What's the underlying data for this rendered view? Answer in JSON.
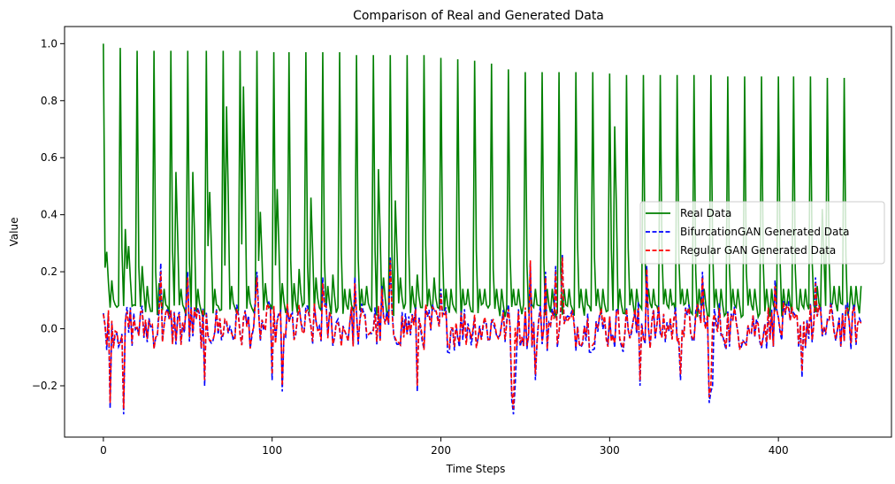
{
  "chart_data": {
    "type": "line",
    "title": "Comparison of Real and Generated Data",
    "xlabel": "Time Steps",
    "ylabel": "Value",
    "xlim": [
      -23,
      467
    ],
    "ylim": [
      -0.38,
      1.06
    ],
    "xticks": [
      0,
      100,
      200,
      300,
      400
    ],
    "yticks": [
      -0.2,
      0.0,
      0.2,
      0.4,
      0.6,
      0.8,
      1.0
    ],
    "ytick_labels": [
      "−0.2",
      "0.0",
      "0.2",
      "0.4",
      "0.6",
      "0.8",
      "1.0"
    ],
    "grid": false,
    "legend_position": "center-right",
    "series": [
      {
        "name": "Real Data",
        "color": "#008000",
        "style": "solid",
        "peak_positions": [
          0,
          10,
          20,
          30,
          40,
          50,
          61,
          71,
          81,
          91,
          101,
          110,
          120,
          130,
          140,
          150,
          160,
          170,
          180,
          190,
          200,
          210,
          220,
          230,
          240,
          250,
          260,
          270,
          280,
          290,
          300,
          310,
          320,
          330,
          340,
          350,
          360,
          370,
          380,
          390,
          400,
          409,
          419,
          429,
          439
        ],
        "peak_values": [
          1.0,
          0.985,
          0.975,
          0.975,
          0.975,
          0.975,
          0.975,
          0.975,
          0.975,
          0.975,
          0.97,
          0.97,
          0.97,
          0.97,
          0.97,
          0.96,
          0.96,
          0.96,
          0.96,
          0.96,
          0.95,
          0.945,
          0.94,
          0.93,
          0.91,
          0.9,
          0.9,
          0.9,
          0.9,
          0.9,
          0.895,
          0.89,
          0.89,
          0.89,
          0.89,
          0.89,
          0.89,
          0.885,
          0.885,
          0.885,
          0.885,
          0.885,
          0.885,
          0.88,
          0.88
        ],
        "secondary_positions": [
          2,
          5,
          13,
          15,
          23,
          26,
          33,
          36,
          43,
          46,
          53,
          56,
          63,
          66,
          73,
          76,
          83,
          86,
          93,
          96,
          103,
          106,
          113,
          116,
          123,
          126,
          133,
          136,
          143,
          146,
          153,
          156,
          163,
          166,
          173,
          176,
          183,
          186,
          193,
          196,
          203,
          206,
          213,
          216,
          223,
          226,
          233,
          236,
          243,
          246,
          253,
          256,
          263,
          266,
          273,
          276,
          283,
          286,
          293,
          296,
          303,
          306,
          313,
          316,
          323,
          326,
          333,
          336,
          343,
          346,
          353,
          356,
          363,
          366,
          373,
          376,
          383,
          386,
          393,
          396,
          403,
          406,
          413,
          416,
          423,
          426,
          433,
          436,
          443,
          446
        ],
        "secondary_values": [
          0.27,
          0.17,
          0.35,
          0.29,
          0.22,
          0.15,
          0.16,
          0.14,
          0.55,
          0.14,
          0.55,
          0.14,
          0.48,
          0.14,
          0.78,
          0.15,
          0.85,
          0.15,
          0.41,
          0.16,
          0.49,
          0.16,
          0.16,
          0.21,
          0.46,
          0.18,
          0.15,
          0.19,
          0.14,
          0.14,
          0.14,
          0.15,
          0.56,
          0.18,
          0.45,
          0.18,
          0.15,
          0.19,
          0.14,
          0.18,
          0.14,
          0.14,
          0.14,
          0.14,
          0.14,
          0.14,
          0.14,
          0.14,
          0.14,
          0.14,
          0.14,
          0.14,
          0.14,
          0.14,
          0.14,
          0.14,
          0.14,
          0.14,
          0.14,
          0.14,
          0.71,
          0.14,
          0.14,
          0.14,
          0.14,
          0.14,
          0.14,
          0.14,
          0.14,
          0.14,
          0.14,
          0.14,
          0.14,
          0.14,
          0.14,
          0.14,
          0.14,
          0.14,
          0.14,
          0.14,
          0.14,
          0.14,
          0.14,
          0.14,
          0.15,
          0.42,
          0.15,
          0.15,
          0.15,
          0.15
        ],
        "x_end": 449,
        "end_value": 0.15
      },
      {
        "name": "BifurcationGAN Generated Data",
        "color": "#0000ff",
        "style": "dashed",
        "minima_positions": [
          4,
          12,
          60,
          100,
          106,
          130,
          186,
          242,
          243,
          244,
          256,
          262,
          318,
          342,
          359,
          360,
          361,
          414
        ],
        "minima_values": [
          -0.28,
          -0.3,
          -0.2,
          -0.18,
          -0.22,
          -0.2,
          -0.22,
          -0.25,
          -0.3,
          -0.2,
          -0.18,
          -0.18,
          -0.2,
          -0.18,
          -0.26,
          -0.22,
          -0.2,
          -0.17
        ],
        "maxima_positions": [
          34,
          50,
          91,
          130,
          149,
          165,
          170,
          200,
          253,
          262,
          268,
          272,
          322,
          355,
          398,
          422
        ],
        "maxima_values": [
          0.23,
          0.2,
          0.2,
          0.18,
          0.18,
          0.15,
          0.25,
          0.14,
          0.23,
          0.2,
          0.22,
          0.26,
          0.22,
          0.2,
          0.17,
          0.18
        ]
      },
      {
        "name": "Regular GAN Generated Data",
        "color": "#ff0000",
        "style": "dashed",
        "minima_positions": [
          4,
          12,
          60,
          100,
          106,
          130,
          186,
          242,
          243,
          256,
          262,
          318,
          342,
          359,
          360,
          414
        ],
        "minima_values": [
          -0.26,
          -0.28,
          -0.18,
          -0.16,
          -0.2,
          -0.18,
          -0.2,
          -0.22,
          -0.28,
          -0.16,
          -0.16,
          -0.18,
          -0.16,
          -0.24,
          -0.2,
          -0.15
        ],
        "maxima_positions": [
          34,
          50,
          91,
          130,
          149,
          165,
          170,
          200,
          253,
          262,
          268,
          272,
          322,
          355,
          398,
          422
        ],
        "maxima_values": [
          0.2,
          0.18,
          0.18,
          0.16,
          0.16,
          0.14,
          0.24,
          0.12,
          0.24,
          0.18,
          0.2,
          0.25,
          0.21,
          0.18,
          0.15,
          0.16
        ]
      }
    ]
  }
}
